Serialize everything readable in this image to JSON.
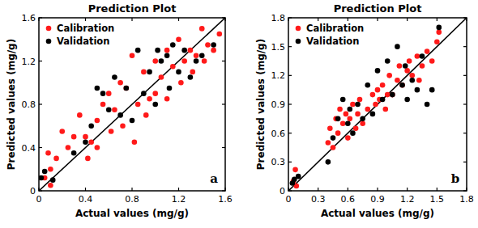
{
  "chart_data": [
    {
      "type": "scatter",
      "title": "Prediction Plot",
      "x_label": "Actual values (mg/g)",
      "y_label": "Predicted values (mg/g)",
      "annotation": "a",
      "xlim": [
        0,
        1.6
      ],
      "ylim": [
        0,
        1.6
      ],
      "xticks": [
        0,
        0.4,
        0.8,
        1.2,
        1.6
      ],
      "yticks": [
        0,
        0.4,
        0.8,
        1.2,
        1.6
      ],
      "grid": false,
      "legend": "upper left",
      "series": [
        {
          "name": "Calibration",
          "color": "#ff1a1a",
          "marker": "circle",
          "x": [
            0.05,
            0.08,
            0.1,
            0.1,
            0.15,
            0.2,
            0.25,
            0.3,
            0.35,
            0.4,
            0.42,
            0.45,
            0.5,
            0.5,
            0.55,
            0.6,
            0.62,
            0.65,
            0.7,
            0.72,
            0.75,
            0.8,
            0.82,
            0.85,
            0.9,
            0.92,
            0.95,
            1.0,
            1.0,
            1.05,
            1.1,
            1.1,
            1.15,
            1.2,
            1.22,
            1.25,
            1.3,
            1.32,
            1.35,
            1.4,
            1.42,
            1.45,
            1.5,
            1.55
          ],
          "values": [
            0.12,
            0.35,
            0.2,
            0.05,
            0.3,
            0.55,
            0.4,
            0.5,
            0.7,
            0.5,
            0.3,
            0.45,
            0.65,
            0.4,
            0.8,
            0.9,
            0.55,
            0.75,
            1.0,
            0.6,
            0.95,
            1.25,
            0.45,
            0.8,
            1.1,
            0.7,
            0.85,
            1.2,
            0.9,
            1.05,
            1.3,
            0.85,
            1.15,
            1.4,
            1.0,
            1.2,
            1.3,
            1.1,
            1.25,
            1.5,
            1.2,
            1.35,
            1.3,
            1.45
          ]
        },
        {
          "name": "Validation",
          "color": "#000000",
          "marker": "circle",
          "x": [
            0.02,
            0.05,
            0.12,
            0.3,
            0.4,
            0.45,
            0.5,
            0.55,
            0.6,
            0.65,
            0.7,
            0.75,
            0.8,
            0.85,
            0.9,
            0.95,
            1.0,
            1.02,
            1.05,
            1.1,
            1.12,
            1.15,
            1.2,
            1.25,
            1.3,
            1.35,
            1.4,
            1.5
          ],
          "values": [
            0.12,
            0.18,
            0.1,
            0.35,
            0.45,
            0.6,
            0.95,
            0.9,
            0.75,
            1.05,
            0.7,
            0.95,
            0.65,
            1.3,
            0.9,
            1.1,
            0.8,
            1.3,
            1.2,
            1.25,
            0.95,
            1.35,
            1.1,
            1.3,
            1.05,
            1.2,
            1.25,
            1.35
          ]
        }
      ]
    },
    {
      "type": "scatter",
      "title": "Prediction Plot",
      "x_label": "Actual values (mg/g)",
      "y_label": "Predicted values (mg/g)",
      "annotation": "b",
      "xlim": [
        0,
        1.8
      ],
      "ylim": [
        0,
        1.8
      ],
      "xticks": [
        0,
        0.3,
        0.6,
        0.9,
        1.2,
        1.5,
        1.8
      ],
      "yticks": [
        0,
        0.3,
        0.6,
        0.9,
        1.2,
        1.5,
        1.8
      ],
      "grid": false,
      "legend": "upper left",
      "series": [
        {
          "name": "Calibration",
          "color": "#ff1a1a",
          "marker": "circle",
          "x": [
            0.05,
            0.07,
            0.08,
            0.4,
            0.42,
            0.45,
            0.48,
            0.5,
            0.52,
            0.55,
            0.58,
            0.6,
            0.62,
            0.65,
            0.68,
            0.7,
            0.72,
            0.75,
            0.8,
            0.85,
            0.88,
            0.9,
            0.92,
            0.95,
            0.98,
            1.0,
            1.02,
            1.05,
            1.1,
            1.12,
            1.15,
            1.2,
            1.22,
            1.25,
            1.3,
            1.32,
            1.35,
            1.4,
            1.45,
            1.5,
            1.52
          ],
          "values": [
            0.1,
            0.22,
            0.05,
            0.5,
            0.65,
            0.45,
            0.75,
            0.6,
            0.85,
            0.7,
            0.8,
            0.55,
            0.75,
            0.9,
            0.65,
            0.8,
            0.95,
            0.7,
            0.85,
            1.0,
            0.9,
            1.05,
            0.95,
            1.1,
            0.85,
            1.0,
            1.2,
            1.0,
            1.15,
            1.3,
            1.1,
            1.25,
            1.35,
            1.2,
            1.4,
            1.15,
            1.3,
            1.45,
            1.35,
            1.55,
            1.65
          ]
        },
        {
          "name": "Validation",
          "color": "#000000",
          "marker": "circle",
          "x": [
            0.04,
            0.06,
            0.1,
            0.4,
            0.45,
            0.5,
            0.55,
            0.6,
            0.62,
            0.65,
            0.7,
            0.75,
            0.8,
            0.85,
            0.9,
            0.95,
            1.0,
            1.05,
            1.1,
            1.15,
            1.18,
            1.2,
            1.25,
            1.3,
            1.35,
            1.4,
            1.45,
            1.52
          ],
          "values": [
            0.08,
            0.12,
            0.15,
            0.3,
            0.55,
            0.75,
            0.95,
            0.7,
            0.85,
            0.6,
            0.9,
            0.75,
            1.1,
            0.8,
            1.25,
            0.95,
            1.35,
            1.0,
            1.5,
            1.1,
            1.3,
            0.95,
            1.15,
            1.05,
            1.4,
            0.9,
            1.05,
            1.7
          ]
        }
      ]
    }
  ]
}
